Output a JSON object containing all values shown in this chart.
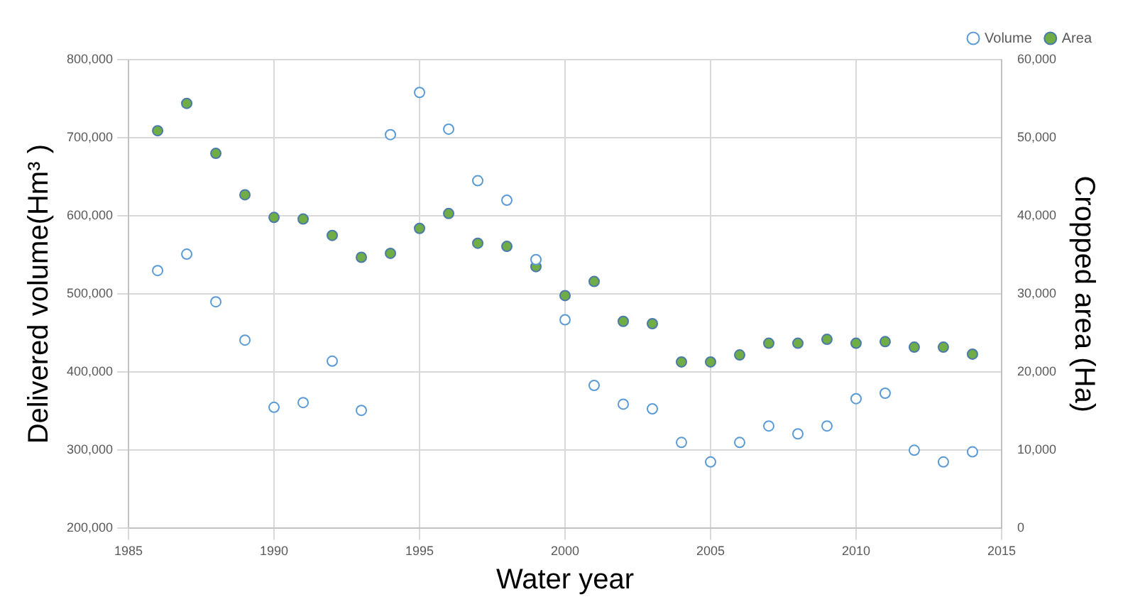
{
  "chart_data": {
    "type": "scatter",
    "xlabel": "Water year",
    "ylabel": "Delivered volume(Hm³ )",
    "y2label": "Cropped area (Ha)",
    "x": [
      1986,
      1987,
      1988,
      1989,
      1990,
      1991,
      1992,
      1993,
      1994,
      1995,
      1996,
      1997,
      1998,
      1999,
      2000,
      2001,
      2002,
      2003,
      2004,
      2005,
      2006,
      2007,
      2008,
      2009,
      2010,
      2011,
      2012,
      2013,
      2014
    ],
    "series": [
      {
        "name": "Volume",
        "color": "#5b9bd5",
        "marker": "circle",
        "values": [
          530000,
          551000,
          490000,
          441000,
          355000,
          361000,
          414000,
          351000,
          704000,
          758000,
          711000,
          645000,
          620000,
          544000,
          467000,
          383000,
          359000,
          353000,
          310000,
          285000,
          310000,
          331000,
          321000,
          331000,
          366000,
          373000,
          300000,
          285000,
          298000
        ]
      },
      {
        "name": "Area",
        "color": "#70ad47",
        "marker": "circle",
        "axis": "y2",
        "values": [
          50900,
          54400,
          48000,
          42700,
          39800,
          39600,
          37500,
          34700,
          35200,
          38400,
          40300,
          36500,
          36100,
          33500,
          29800,
          31600,
          26500,
          26200,
          21300,
          21300,
          22200,
          23700,
          23700,
          24200,
          23700,
          23900,
          23200,
          23200,
          22300
        ]
      }
    ],
    "xlim": [
      1985,
      2015
    ],
    "xticks": [
      1985,
      1990,
      1995,
      2000,
      2005,
      2010,
      2015
    ],
    "ylim": [
      200000,
      800000
    ],
    "yticks": [
      {
        "value": 200000,
        "label": "200,000"
      },
      {
        "value": 300000,
        "label": "300,000"
      },
      {
        "value": 400000,
        "label": "400,000"
      },
      {
        "value": 500000,
        "label": "500,000"
      },
      {
        "value": 600000,
        "label": "600,000"
      },
      {
        "value": 700000,
        "label": "700,000"
      },
      {
        "value": 800000,
        "label": "800,000"
      }
    ],
    "y2lim": [
      0,
      60000
    ],
    "y2ticks": [
      0,
      {
        "value": 10000,
        "label": "10,000"
      },
      {
        "value": 20000,
        "label": "20,000"
      },
      {
        "value": 30000,
        "label": "30,000"
      },
      {
        "value": 40000,
        "label": "40,000"
      },
      {
        "value": 50000,
        "label": "50,000"
      },
      {
        "value": 60000,
        "label": "60,000"
      }
    ],
    "grid": true,
    "legend": "top right"
  }
}
